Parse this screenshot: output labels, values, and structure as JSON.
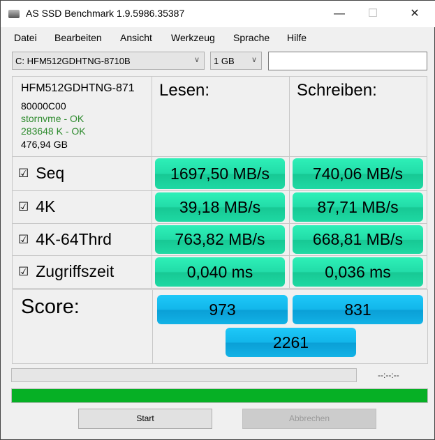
{
  "window": {
    "title": "AS SSD Benchmark 1.9.5986.35387",
    "minimize": "—",
    "maximize": "☐",
    "close": "✕"
  },
  "menu": [
    "Datei",
    "Bearbeiten",
    "Ansicht",
    "Werkzeug",
    "Sprache",
    "Hilfe"
  ],
  "drive_select": {
    "value": "C: HFM512GDHTNG-8710B"
  },
  "size_select": {
    "value": "1 GB"
  },
  "text_field": {
    "value": ""
  },
  "drive_info": {
    "model": "HFM512GDHTNG-871",
    "firmware": "80000C00",
    "driver": "stornvme - OK",
    "alignment": "283648 K - OK",
    "capacity": "476,94 GB"
  },
  "headers": {
    "read": "Lesen:",
    "write": "Schreiben:"
  },
  "rows": [
    {
      "label": "Seq",
      "checked": true,
      "read": "1697,50 MB/s",
      "write": "740,06 MB/s"
    },
    {
      "label": "4K",
      "checked": true,
      "read": "39,18 MB/s",
      "write": "87,71 MB/s"
    },
    {
      "label": "4K-64Thrd",
      "checked": true,
      "read": "763,82 MB/s",
      "write": "668,81 MB/s"
    },
    {
      "label": "Zugriffszeit",
      "checked": true,
      "read": "0,040 ms",
      "write": "0,036 ms"
    }
  ],
  "score": {
    "label": "Score:",
    "read": "973",
    "write": "831",
    "total": "2261"
  },
  "progress": {
    "test_progress": 0,
    "time": "--:--:--",
    "overall_progress": 100,
    "overall_color": "#06b025"
  },
  "colors": {
    "result": "#22dca8",
    "score": "#12b6ea"
  },
  "buttons": {
    "start": "Start",
    "cancel": "Abbrechen"
  },
  "checkmark": "☑"
}
